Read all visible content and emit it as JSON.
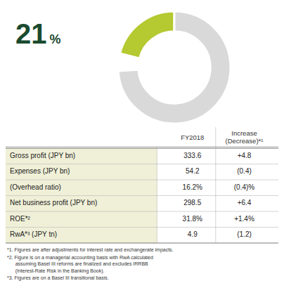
{
  "chart_data": {
    "type": "donut",
    "title": "21",
    "annotations": [
      "%"
    ],
    "values": [
      21,
      5,
      74
    ],
    "colors": [
      "#b5c930",
      "#ffffff",
      "#d9d9d9"
    ],
    "table": {
      "header": [
        "FY2018",
        "Increase\n(Decrease)*¹"
      ],
      "rows": [
        [
          "Gross profit (JPY bn)",
          "333.6",
          "+4.8"
        ],
        [
          "Expenses (JPY bn)",
          "54.2",
          "(0.4)"
        ],
        [
          "(Overhead ratio)",
          "16.2%",
          "(0.4)%"
        ],
        [
          "Net business profit (JPY bn)",
          "298.5",
          "+6.4"
        ],
        [
          "ROE*²",
          "31.8%",
          "+1.4%"
        ],
        [
          "RwA*³ (JPY tn)",
          "4.9",
          "(1.2)"
        ]
      ]
    },
    "footnotes": [
      "*1. Figures are after adjustments for interest rate and exchangerate impacts.",
      "*2. Figure is on a managerial accounting basis with RwA calculated\n      assuming Basel III reforms are finalized and excludes IRRBB\n      (Interest-Rate Risk in the Banking Book).",
      "*3. Figures are on a Basel III transitional basis."
    ]
  }
}
